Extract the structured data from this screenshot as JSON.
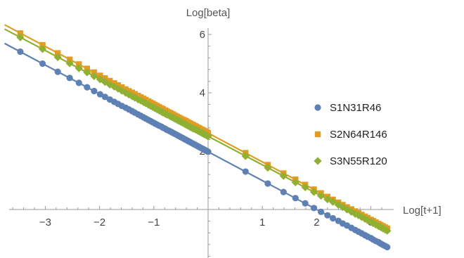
{
  "chart_data": {
    "type": "scatter",
    "title": "",
    "xlabel": "Log[t+1]",
    "ylabel": "Log[beta]",
    "xlim": [
      -3.75,
      3.35
    ],
    "ylim": [
      -1.8,
      6.4
    ],
    "x_ticks": [
      {
        "value": -3,
        "label": "−3"
      },
      {
        "value": -2,
        "label": "−2"
      },
      {
        "value": -1,
        "label": "−1"
      },
      {
        "value": 1,
        "label": "1"
      },
      {
        "value": 2,
        "label": "2"
      },
      {
        "value": 3,
        "label": "3"
      }
    ],
    "y_ticks": [
      {
        "value": 2,
        "label": "2"
      },
      {
        "value": 4,
        "label": "4"
      },
      {
        "value": 6,
        "label": "6"
      }
    ],
    "legend_position": "right",
    "series": [
      {
        "name": "S1N31R46",
        "marker": "circle",
        "color": "#5e81b5",
        "fit": {
          "intercept": 1.98,
          "slope": -0.99,
          "x_range": [
            -3.75,
            3.35
          ]
        },
        "x": [
          -3.46,
          -3.05,
          -2.77,
          -2.55,
          -2.38,
          -2.23,
          -2.1,
          -1.99,
          -1.9,
          -1.81,
          -1.73,
          -1.66,
          -1.59,
          -1.52,
          -1.46,
          -1.4,
          -1.35,
          -1.29,
          -1.24,
          -1.19,
          -1.15,
          -1.1,
          -1.06,
          -1.02,
          -0.98,
          -0.94,
          -0.9,
          -0.86,
          -0.83,
          -0.79,
          -0.76,
          -0.72,
          -0.69,
          -0.66,
          -0.63,
          -0.6,
          -0.57,
          -0.54,
          -0.51,
          -0.48,
          -0.45,
          -0.42,
          -0.4,
          -0.37,
          -0.34,
          -0.32,
          -0.29,
          -0.27,
          -0.24,
          -0.22,
          -0.19,
          -0.17,
          -0.15,
          -0.12,
          -0.1,
          -0.08,
          -0.06,
          -0.03,
          -0.01,
          0.0,
          0.69,
          1.1,
          1.39,
          1.61,
          1.79,
          1.95,
          2.08,
          2.2,
          2.3,
          2.4,
          2.48,
          2.56,
          2.64,
          2.71,
          2.77,
          2.83,
          2.89,
          2.94,
          3.0,
          3.04,
          3.09,
          3.14,
          3.18,
          3.22,
          3.26,
          3.3
        ],
        "y": [
          5.41,
          5.0,
          4.72,
          4.51,
          4.34,
          4.19,
          4.06,
          3.95,
          3.86,
          3.77,
          3.69,
          3.62,
          3.55,
          3.49,
          3.43,
          3.37,
          3.32,
          3.26,
          3.21,
          3.16,
          3.12,
          3.07,
          3.03,
          2.99,
          2.95,
          2.91,
          2.87,
          2.84,
          2.8,
          2.77,
          2.73,
          2.7,
          2.67,
          2.64,
          2.61,
          2.58,
          2.55,
          2.52,
          2.49,
          2.46,
          2.43,
          2.4,
          2.38,
          2.35,
          2.32,
          2.3,
          2.27,
          2.25,
          2.22,
          2.2,
          2.17,
          2.15,
          2.13,
          2.1,
          2.08,
          2.06,
          2.04,
          2.01,
          1.99,
          1.98,
          1.3,
          0.89,
          0.6,
          0.39,
          0.21,
          0.05,
          -0.08,
          -0.2,
          -0.3,
          -0.39,
          -0.48,
          -0.55,
          -0.63,
          -0.7,
          -0.76,
          -0.82,
          -0.88,
          -0.93,
          -0.98,
          -1.03,
          -1.08,
          -1.12,
          -1.17,
          -1.21,
          -1.25,
          -1.29
        ]
      },
      {
        "name": "S2N64R146",
        "marker": "square",
        "color": "#e19c24",
        "fit": {
          "intercept": 2.62,
          "slope": -0.99,
          "x_range": [
            -3.75,
            3.35
          ]
        },
        "x": [
          -3.46,
          -3.05,
          -2.77,
          -2.55,
          -2.38,
          -2.23,
          -2.1,
          -1.99,
          -1.9,
          -1.81,
          -1.73,
          -1.66,
          -1.59,
          -1.52,
          -1.46,
          -1.4,
          -1.35,
          -1.29,
          -1.24,
          -1.19,
          -1.15,
          -1.1,
          -1.06,
          -1.02,
          -0.98,
          -0.94,
          -0.9,
          -0.86,
          -0.83,
          -0.79,
          -0.76,
          -0.72,
          -0.69,
          -0.66,
          -0.63,
          -0.6,
          -0.57,
          -0.54,
          -0.51,
          -0.48,
          -0.45,
          -0.42,
          -0.4,
          -0.37,
          -0.34,
          -0.32,
          -0.29,
          -0.27,
          -0.24,
          -0.22,
          -0.19,
          -0.17,
          -0.15,
          -0.12,
          -0.1,
          -0.08,
          -0.06,
          -0.03,
          -0.01,
          0.0,
          0.69,
          1.1,
          1.39,
          1.61,
          1.79,
          1.95,
          2.08,
          2.2,
          2.3,
          2.4,
          2.48,
          2.56,
          2.64,
          2.71,
          2.77,
          2.83,
          2.89,
          2.94,
          3.0,
          3.04,
          3.09,
          3.14,
          3.18,
          3.22,
          3.26,
          3.3
        ],
        "y": [
          6.04,
          5.64,
          5.36,
          5.14,
          4.98,
          4.83,
          4.7,
          4.59,
          4.5,
          4.41,
          4.33,
          4.26,
          4.19,
          4.12,
          4.06,
          4.01,
          3.96,
          3.9,
          3.85,
          3.8,
          3.76,
          3.71,
          3.67,
          3.63,
          3.59,
          3.55,
          3.51,
          3.47,
          3.44,
          3.4,
          3.37,
          3.33,
          3.3,
          3.27,
          3.24,
          3.21,
          3.18,
          3.15,
          3.12,
          3.09,
          3.07,
          3.04,
          3.02,
          2.99,
          2.96,
          2.94,
          2.91,
          2.89,
          2.86,
          2.84,
          2.81,
          2.79,
          2.77,
          2.74,
          2.72,
          2.7,
          2.68,
          2.65,
          2.63,
          2.62,
          1.94,
          1.53,
          1.24,
          1.03,
          0.85,
          0.69,
          0.56,
          0.44,
          0.34,
          0.24,
          0.16,
          0.08,
          0.01,
          -0.06,
          -0.12,
          -0.18,
          -0.24,
          -0.29,
          -0.35,
          -0.39,
          -0.44,
          -0.49,
          -0.53,
          -0.57,
          -0.61,
          -0.65
        ]
      },
      {
        "name": "S3N55R120",
        "marker": "diamond",
        "color": "#8fb032",
        "fit": {
          "intercept": 2.51,
          "slope": -0.98,
          "x_range": [
            -3.75,
            3.35
          ]
        },
        "x": [
          -3.46,
          -3.05,
          -2.77,
          -2.55,
          -2.38,
          -2.23,
          -2.1,
          -1.99,
          -1.9,
          -1.81,
          -1.73,
          -1.66,
          -1.59,
          -1.52,
          -1.46,
          -1.4,
          -1.35,
          -1.29,
          -1.24,
          -1.19,
          -1.15,
          -1.1,
          -1.06,
          -1.02,
          -0.98,
          -0.94,
          -0.9,
          -0.86,
          -0.83,
          -0.79,
          -0.76,
          -0.72,
          -0.69,
          -0.66,
          -0.63,
          -0.6,
          -0.57,
          -0.54,
          -0.51,
          -0.48,
          -0.45,
          -0.42,
          -0.4,
          -0.37,
          -0.34,
          -0.32,
          -0.29,
          -0.27,
          -0.24,
          -0.22,
          -0.19,
          -0.17,
          -0.15,
          -0.12,
          -0.1,
          -0.08,
          -0.06,
          -0.03,
          -0.01,
          0.0,
          0.69,
          1.1,
          1.39,
          1.61,
          1.79,
          1.95,
          2.08,
          2.2,
          2.3,
          2.4,
          2.48,
          2.56,
          2.64,
          2.71,
          2.77,
          2.83,
          2.89,
          2.94,
          3.0,
          3.04,
          3.09,
          3.14,
          3.18,
          3.22,
          3.26,
          3.3
        ],
        "y": [
          5.9,
          5.5,
          5.22,
          5.01,
          4.84,
          4.7,
          4.57,
          4.46,
          4.37,
          4.28,
          4.21,
          4.14,
          4.07,
          4.0,
          3.94,
          3.88,
          3.83,
          3.77,
          3.73,
          3.68,
          3.64,
          3.59,
          3.55,
          3.51,
          3.47,
          3.43,
          3.39,
          3.35,
          3.32,
          3.28,
          3.25,
          3.22,
          3.19,
          3.16,
          3.13,
          3.1,
          3.07,
          3.04,
          3.01,
          2.98,
          2.95,
          2.92,
          2.9,
          2.87,
          2.84,
          2.82,
          2.79,
          2.77,
          2.75,
          2.73,
          2.7,
          2.68,
          2.66,
          2.63,
          2.61,
          2.59,
          2.57,
          2.54,
          2.52,
          2.51,
          1.83,
          1.43,
          1.15,
          0.93,
          0.76,
          0.6,
          0.47,
          0.35,
          0.26,
          0.16,
          0.08,
          0.0,
          -0.08,
          -0.15,
          -0.2,
          -0.26,
          -0.32,
          -0.37,
          -0.43,
          -0.47,
          -0.52,
          -0.57,
          -0.61,
          -0.65,
          -0.69,
          -0.73
        ]
      }
    ]
  }
}
